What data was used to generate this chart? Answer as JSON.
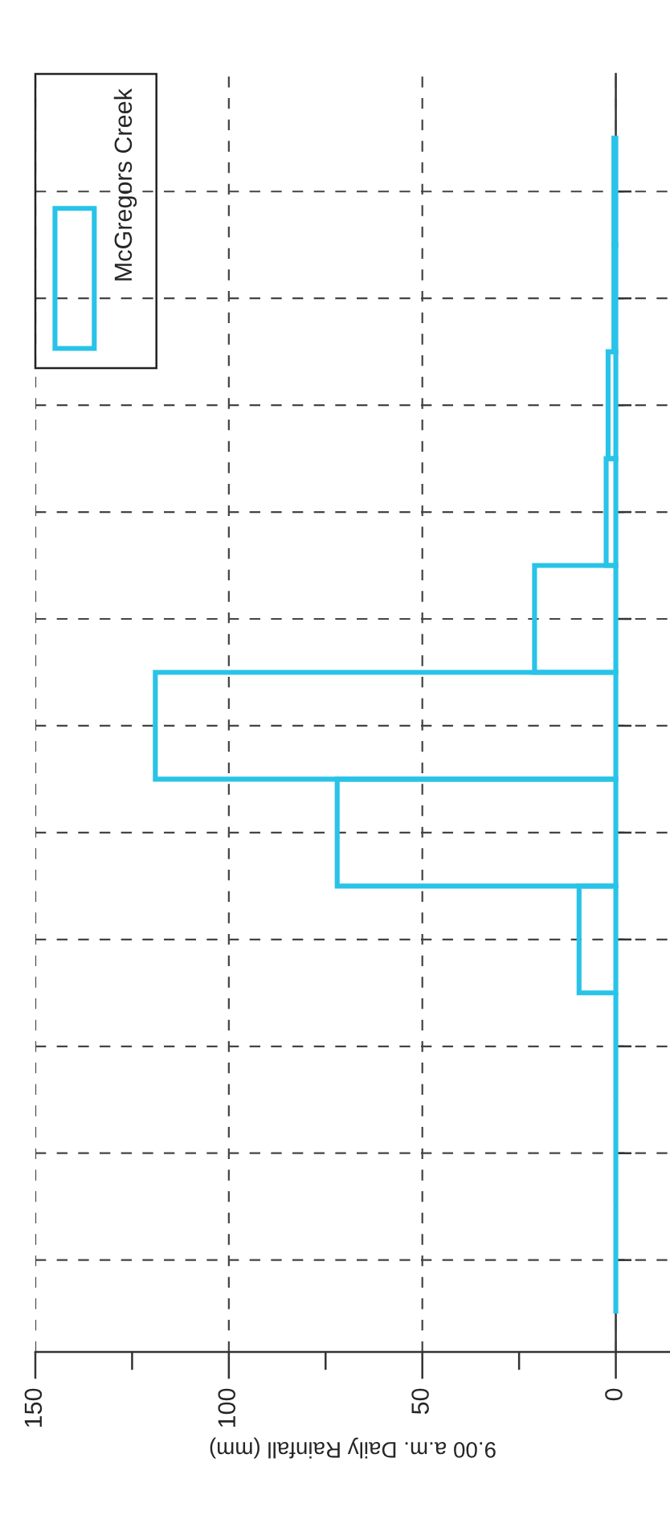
{
  "chart_data": {
    "type": "bar",
    "orientation": "horizontal",
    "xlabel": "9.00 a.m. Daily Rainfall (mm)",
    "categories": [
      null,
      null,
      null,
      null,
      null,
      null,
      null,
      null,
      null,
      null,
      null
    ],
    "series": [
      {
        "name": "McGregors Creek",
        "color": "#29c3e8",
        "values": [
          0.5,
          0.5,
          2,
          2.5,
          21,
          119,
          72,
          9.5,
          0,
          0,
          0
        ]
      }
    ],
    "xlim": [
      150,
      -14
    ],
    "xticks": [
      150,
      {
        "value": 125,
        "label": null
      },
      100,
      {
        "value": 75,
        "label": null
      },
      50,
      {
        "value": 25,
        "label": null
      },
      0
    ],
    "tick_labels": "x",
    "grid": true,
    "legend": "top left"
  }
}
